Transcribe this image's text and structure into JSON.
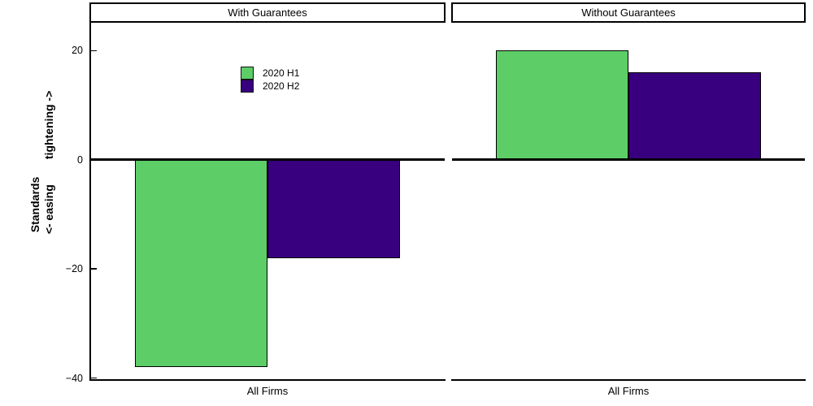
{
  "chart_data": {
    "type": "bar",
    "panels": [
      {
        "title": "With Guarantees",
        "categories": [
          "All Firms"
        ],
        "series": [
          {
            "name": "2020 H1",
            "values": [
              -38
            ]
          },
          {
            "name": "2020 H2",
            "values": [
              -18
            ]
          }
        ]
      },
      {
        "title": "Without Guarantees",
        "categories": [
          "All Firms"
        ],
        "series": [
          {
            "name": "2020 H1",
            "values": [
              20
            ]
          },
          {
            "name": "2020 H2",
            "values": [
              16
            ]
          }
        ]
      }
    ],
    "series_colors": [
      "#5dcd67",
      "#38007f"
    ],
    "legend": [
      {
        "label": "2020 H1",
        "color": "#5dcd67"
      },
      {
        "label": "2020 H2",
        "color": "#38007f"
      }
    ],
    "legend_position": "upper-left-inside-first-panel",
    "ylabel_line1": "Standards",
    "ylabel_line2": "<- easing        tightening ->",
    "yticks": [
      20,
      0,
      -20,
      -40
    ],
    "ytick_labels": [
      "20",
      "0",
      "−20",
      "−40"
    ],
    "ylim": [
      -40.35,
      25.25
    ],
    "zero_line": true,
    "grid": false,
    "background_color": "#ffffff",
    "axis_color": "#000000"
  }
}
